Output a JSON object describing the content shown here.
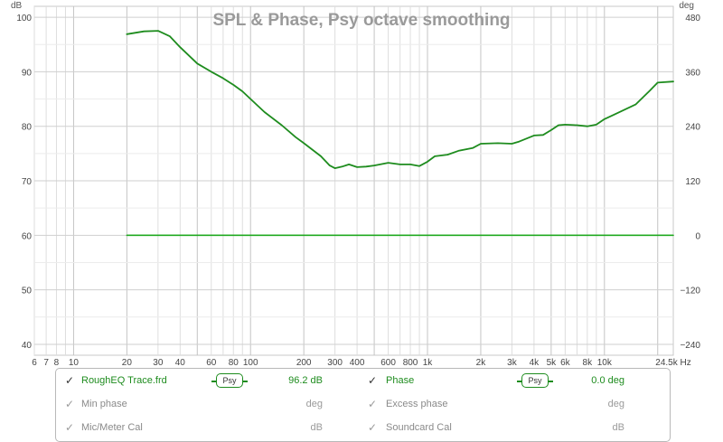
{
  "chart_data": {
    "type": "line",
    "title": "SPL & Phase, Psy octave smoothing",
    "left_unit": "dB",
    "right_unit": "deg",
    "x_unit": "Hz",
    "x_scale": "log",
    "xlim": [
      6,
      24500
    ],
    "ylim_left": [
      38,
      102
    ],
    "ylim_right": [
      -264,
      504
    ],
    "grid": true,
    "x_ticks": [
      {
        "v": 6,
        "label": "6"
      },
      {
        "v": 7,
        "label": "7"
      },
      {
        "v": 8,
        "label": "8"
      },
      {
        "v": 10,
        "label": "10"
      },
      {
        "v": 20,
        "label": "20"
      },
      {
        "v": 30,
        "label": "30"
      },
      {
        "v": 40,
        "label": "40"
      },
      {
        "v": 60,
        "label": "60"
      },
      {
        "v": 80,
        "label": "80"
      },
      {
        "v": 100,
        "label": "100"
      },
      {
        "v": 200,
        "label": "200"
      },
      {
        "v": 300,
        "label": "300"
      },
      {
        "v": 400,
        "label": "400"
      },
      {
        "v": 600,
        "label": "600"
      },
      {
        "v": 800,
        "label": "800"
      },
      {
        "v": 1000,
        "label": "1k"
      },
      {
        "v": 2000,
        "label": "2k"
      },
      {
        "v": 3000,
        "label": "3k"
      },
      {
        "v": 4000,
        "label": "4k"
      },
      {
        "v": 5000,
        "label": "5k"
      },
      {
        "v": 6000,
        "label": "6k"
      },
      {
        "v": 8000,
        "label": "8k"
      },
      {
        "v": 10000,
        "label": "10k"
      },
      {
        "v": 24500,
        "label": "24.5k Hz"
      }
    ],
    "y_ticks_left": [
      40,
      50,
      60,
      70,
      80,
      90,
      100
    ],
    "y_ticks_right": [
      -240,
      -120,
      0,
      120,
      240,
      360,
      480
    ],
    "series": [
      {
        "name": "RoughEQ Trace.frd",
        "axis": "left",
        "color": "#1e8c1e",
        "points": [
          [
            20,
            96.9
          ],
          [
            25,
            97.4
          ],
          [
            30,
            97.5
          ],
          [
            35,
            96.5
          ],
          [
            40,
            94.5
          ],
          [
            50,
            91.5
          ],
          [
            60,
            90.0
          ],
          [
            70,
            88.8
          ],
          [
            80,
            87.6
          ],
          [
            90,
            86.4
          ],
          [
            100,
            85.0
          ],
          [
            120,
            82.6
          ],
          [
            150,
            80.2
          ],
          [
            180,
            78.0
          ],
          [
            200,
            76.9
          ],
          [
            250,
            74.5
          ],
          [
            280,
            72.8
          ],
          [
            300,
            72.3
          ],
          [
            330,
            72.6
          ],
          [
            360,
            73.0
          ],
          [
            400,
            72.5
          ],
          [
            450,
            72.6
          ],
          [
            500,
            72.8
          ],
          [
            600,
            73.3
          ],
          [
            700,
            73.0
          ],
          [
            800,
            73.0
          ],
          [
            900,
            72.7
          ],
          [
            1000,
            73.5
          ],
          [
            1100,
            74.5
          ],
          [
            1300,
            74.8
          ],
          [
            1500,
            75.5
          ],
          [
            1800,
            76.0
          ],
          [
            2000,
            76.8
          ],
          [
            2500,
            76.9
          ],
          [
            3000,
            76.8
          ],
          [
            3300,
            77.2
          ],
          [
            4000,
            78.3
          ],
          [
            4500,
            78.4
          ],
          [
            5000,
            79.3
          ],
          [
            5500,
            80.2
          ],
          [
            6000,
            80.3
          ],
          [
            7000,
            80.2
          ],
          [
            8000,
            80.0
          ],
          [
            9000,
            80.3
          ],
          [
            10000,
            81.3
          ],
          [
            12000,
            82.5
          ],
          [
            15000,
            84.0
          ],
          [
            18000,
            86.5
          ],
          [
            20000,
            88.0
          ],
          [
            24500,
            88.2
          ]
        ]
      },
      {
        "name": "Phase",
        "axis": "right",
        "color": "#22aa22",
        "points": [
          [
            20,
            0
          ],
          [
            24500,
            0
          ]
        ]
      }
    ]
  },
  "legend": {
    "rows": [
      {
        "left_label": "RoughEQ Trace.frd",
        "left_value": "96.2 dB",
        "left_psy": "Psy",
        "right_label": "Phase",
        "right_value": "0.0 deg",
        "right_psy": "Psy"
      },
      {
        "left_label": "Min phase",
        "left_value": "deg",
        "right_label": "Excess phase",
        "right_value": "deg"
      },
      {
        "left_label": "Mic/Meter Cal",
        "left_value": "dB",
        "right_label": "Soundcard Cal",
        "right_value": "dB"
      }
    ],
    "check_glyph": "✓"
  }
}
